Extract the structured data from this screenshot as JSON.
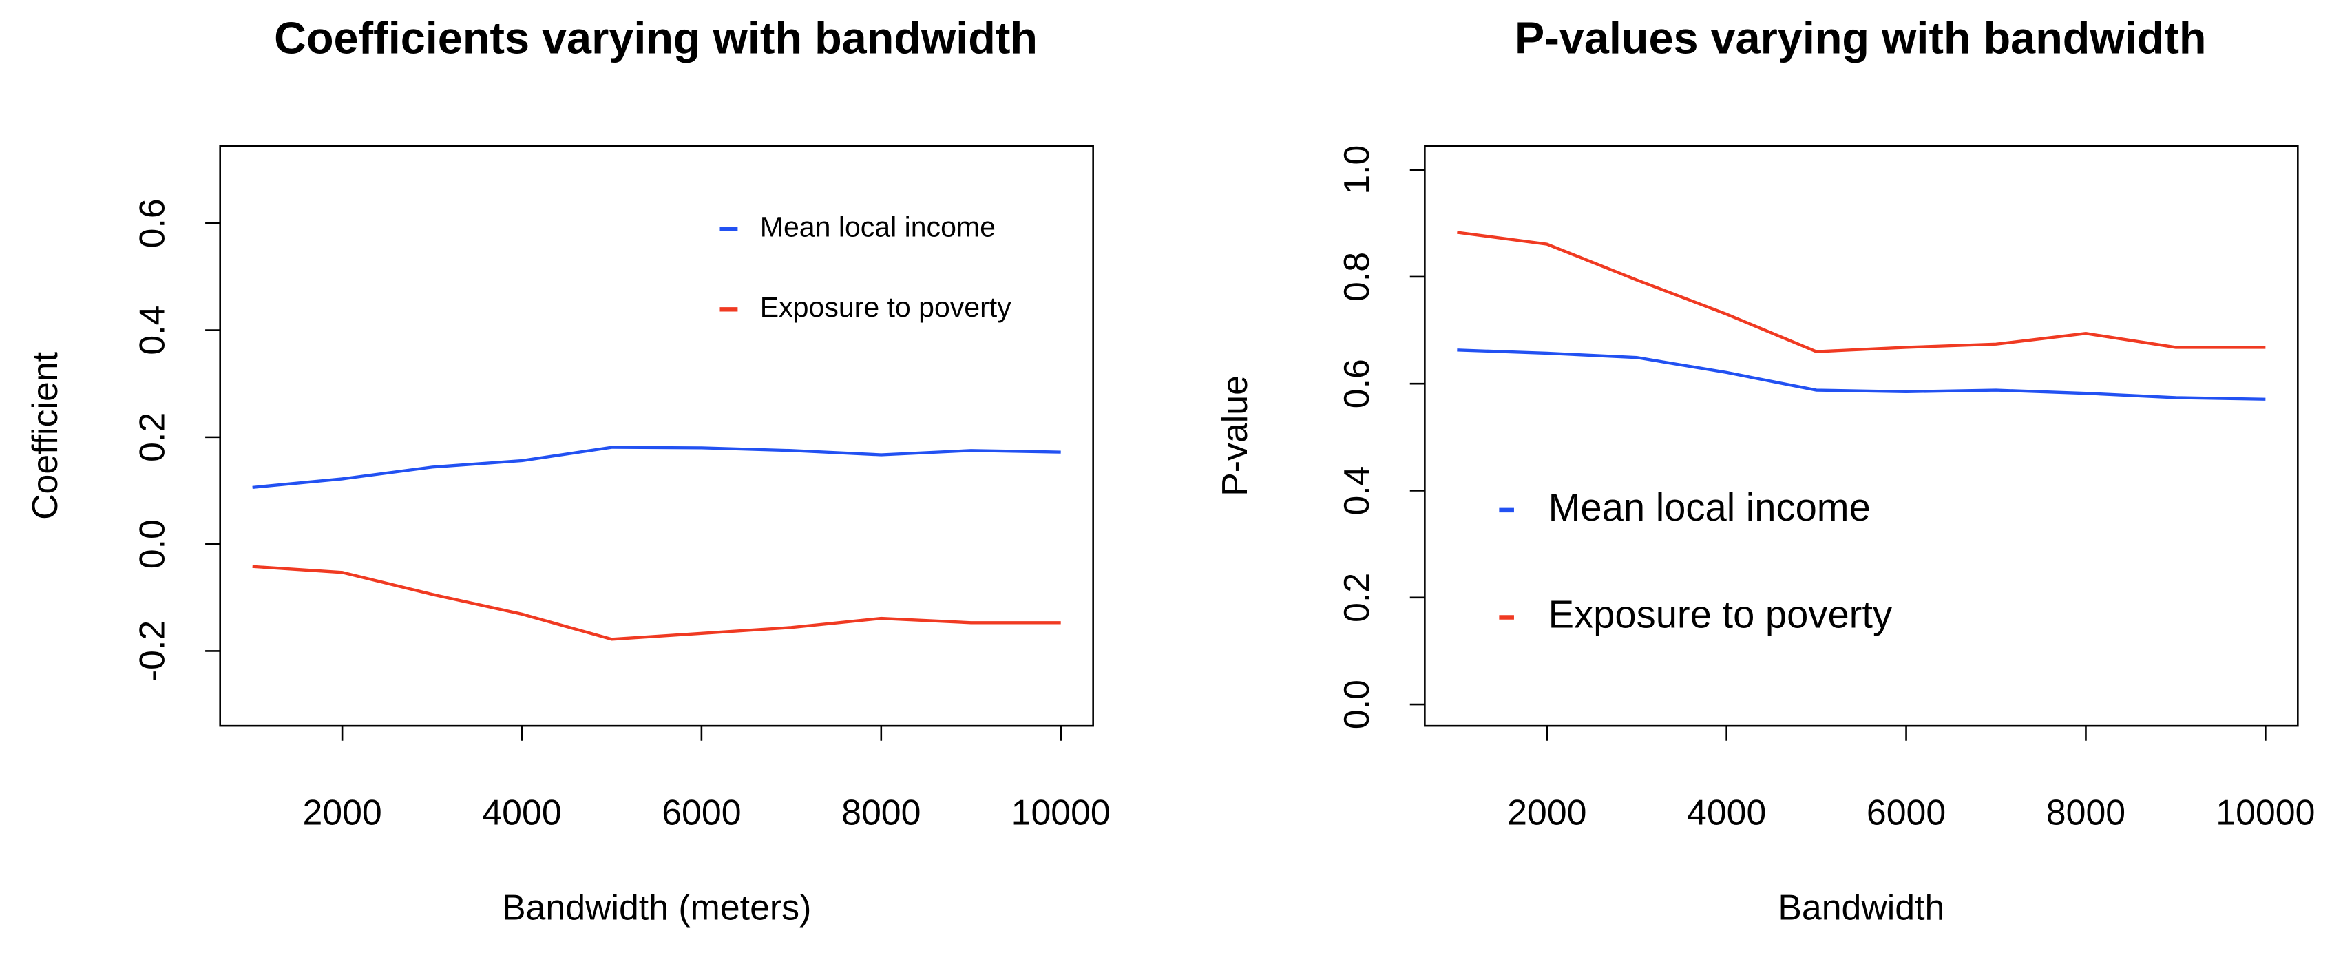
{
  "chart_data": [
    {
      "type": "line",
      "title": "Coefficients varying with bandwidth",
      "x_label": "Bandwidth (meters)",
      "y_label": "Coefficient",
      "x": [
        1000,
        2000,
        3000,
        4000,
        5000,
        6000,
        7000,
        8000,
        9000,
        10000
      ],
      "series": [
        {
          "name": "Mean local income",
          "color": "#2251f2",
          "values": [
            0.106,
            0.122,
            0.144,
            0.156,
            0.181,
            0.18,
            0.175,
            0.167,
            0.175,
            0.172
          ]
        },
        {
          "name": "Exposure to poverty",
          "color": "#f03a22",
          "values": [
            -0.042,
            -0.053,
            -0.094,
            -0.131,
            -0.178,
            -0.167,
            -0.156,
            -0.139,
            -0.147,
            -0.147
          ]
        }
      ],
      "xlim": [
        640,
        10360
      ],
      "xticks": [
        2000,
        4000,
        6000,
        8000,
        10000
      ],
      "ylim": [
        -0.34,
        0.745
      ],
      "yticks": [
        -0.2,
        {
          "value": 0,
          "label": "0.0"
        },
        0.2,
        0.4,
        0.6
      ],
      "legend_position": "topright",
      "grid": false
    },
    {
      "type": "line",
      "title": "P-values varying with bandwidth",
      "x_label": "Bandwidth",
      "y_label": "P-value",
      "x": [
        1000,
        2000,
        3000,
        4000,
        5000,
        6000,
        7000,
        8000,
        9000,
        10000
      ],
      "series": [
        {
          "name": "Mean local income",
          "color": "#2251f2",
          "values": [
            0.663,
            0.657,
            0.649,
            0.621,
            0.588,
            0.585,
            0.588,
            0.582,
            0.574,
            0.571
          ]
        },
        {
          "name": "Exposure to poverty",
          "color": "#f03a22",
          "values": [
            0.883,
            0.861,
            0.794,
            0.73,
            0.66,
            0.668,
            0.674,
            0.694,
            0.668,
            0.668
          ]
        }
      ],
      "xlim": [
        640,
        10360
      ],
      "xticks": [
        2000,
        4000,
        6000,
        8000,
        10000
      ],
      "ylim": [
        -0.04,
        1.045
      ],
      "yticks": [
        {
          "value": 0,
          "label": "0.0"
        },
        0.2,
        0.4,
        0.6,
        0.8,
        {
          "value": 1,
          "label": "1.0"
        }
      ],
      "legend_position": "left",
      "grid": false
    }
  ]
}
